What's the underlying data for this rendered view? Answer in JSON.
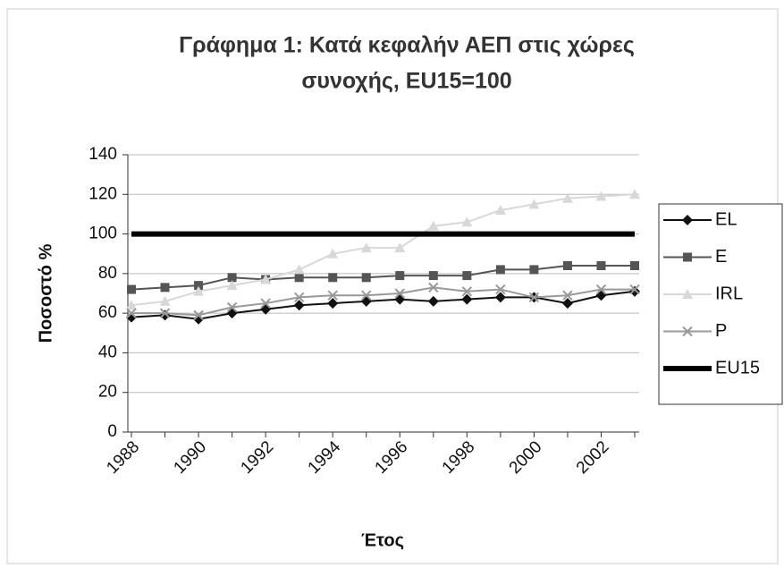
{
  "chart_data": {
    "type": "line",
    "title": [
      "Γράφημα 1: Κατά κεφαλήν ΑΕΠ στις χώρες",
      "συνοχής, EU15=100"
    ],
    "y_label": "Ποσοστό %",
    "x_label": "Έτος",
    "categories": [
      "1988",
      null,
      "1990",
      null,
      "1992",
      null,
      "1994",
      null,
      "1996",
      null,
      "1998",
      null,
      "2000",
      null,
      "2002",
      null
    ],
    "series": [
      {
        "name": "EL",
        "color": "#111111",
        "marker": "diamond",
        "values": [
          58,
          59,
          57,
          60,
          62,
          64,
          65,
          66,
          67,
          66,
          67,
          68,
          68,
          65,
          69,
          71
        ]
      },
      {
        "name": "E",
        "color": "#555555",
        "marker": "square",
        "values": [
          72,
          73,
          74,
          78,
          77,
          78,
          78,
          78,
          79,
          79,
          79,
          82,
          82,
          84,
          84,
          84
        ]
      },
      {
        "name": "IRL",
        "color": "#d8d8d8",
        "marker": "triangle",
        "values": [
          64,
          66,
          71,
          74,
          77,
          82,
          90,
          93,
          93,
          104,
          106,
          112,
          115,
          118,
          119,
          120
        ]
      },
      {
        "name": "P",
        "color": "#999999",
        "marker": "x",
        "values": [
          60,
          60,
          59,
          63,
          65,
          68,
          69,
          69,
          70,
          73,
          71,
          72,
          68,
          69,
          72,
          72
        ]
      },
      {
        "name": "EU15",
        "color": "#000000",
        "marker": "none",
        "values": [
          100,
          100,
          100,
          100,
          100,
          100,
          100,
          100,
          100,
          100,
          100,
          100,
          100,
          100,
          100,
          100
        ]
      }
    ],
    "ylim": [
      0,
      140
    ],
    "yticks": [
      0,
      20,
      40,
      60,
      80,
      100,
      120,
      140
    ],
    "grid": true,
    "legend": "right"
  }
}
